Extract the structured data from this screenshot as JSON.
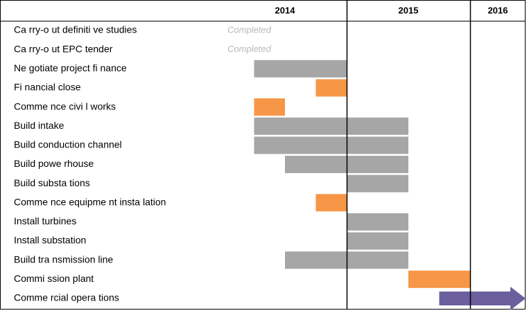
{
  "chart_data": {
    "type": "gantt",
    "xlim": [
      2014,
      2016.45
    ],
    "xticks": [
      2014,
      2015,
      2016
    ],
    "colors": {
      "work": "#a6a6a6",
      "milestone": "#f79646",
      "operations": "#6b5f9e"
    },
    "tasks": [
      {
        "name": "Ca rry-o ut definiti ve studies",
        "status": "Completed"
      },
      {
        "name": "Ca rry-o ut EPC tender",
        "status": "Completed"
      },
      {
        "name": "Ne gotiate project fi nance",
        "start": 2014.25,
        "end": 2015.0,
        "kind": "work"
      },
      {
        "name": "Fi nancial close",
        "start": 2014.75,
        "end": 2015.0,
        "kind": "milestone"
      },
      {
        "name": "Comme nce civi l works",
        "start": 2014.25,
        "end": 2014.5,
        "kind": "milestone"
      },
      {
        "name": "Build intake",
        "start": 2014.25,
        "end": 2015.5,
        "kind": "work"
      },
      {
        "name": "Build conduction channel",
        "start": 2014.25,
        "end": 2015.5,
        "kind": "work"
      },
      {
        "name": "Build powe rhouse",
        "start": 2014.5,
        "end": 2015.5,
        "kind": "work"
      },
      {
        "name": "Build substa tions",
        "start": 2015.0,
        "end": 2015.5,
        "kind": "work"
      },
      {
        "name": "Comme nce equipme nt insta lation",
        "start": 2014.75,
        "end": 2015.0,
        "kind": "milestone"
      },
      {
        "name": "Install turbines",
        "start": 2015.0,
        "end": 2015.5,
        "kind": "work"
      },
      {
        "name": "Install substation",
        "start": 2015.0,
        "end": 2015.5,
        "kind": "work"
      },
      {
        "name": "Build tra nsmission line",
        "start": 2014.5,
        "end": 2015.5,
        "kind": "work"
      },
      {
        "name": "Commi ssion plant",
        "start": 2015.5,
        "end": 2016.0,
        "kind": "milestone"
      },
      {
        "name": "Comme rcial opera tions",
        "start": 2015.75,
        "end": 2016.45,
        "kind": "operations"
      }
    ]
  }
}
